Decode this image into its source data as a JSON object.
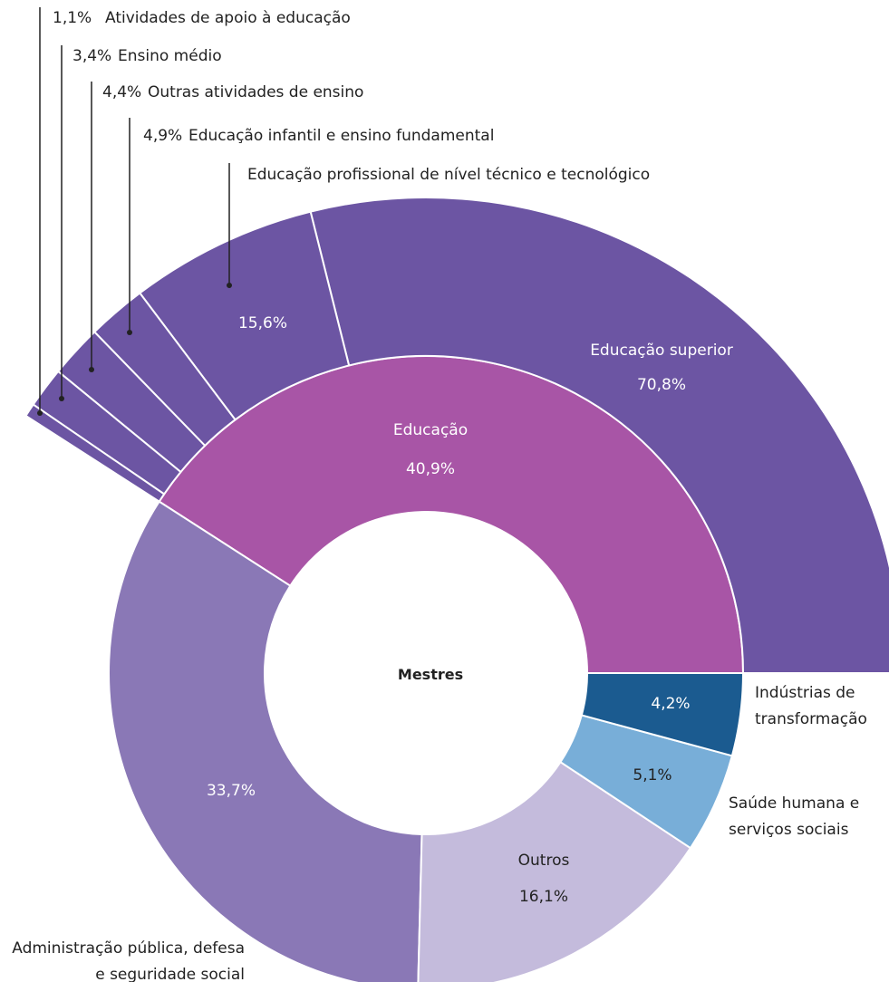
{
  "chart_data": {
    "type": "sunburst",
    "center_label": "Mestres",
    "categories": [
      "Educação",
      "Administração pública, defesa e seguridade social",
      "Outros",
      "Saúde humana e serviços sociais",
      "Indústrias de transformação"
    ],
    "values": [
      40.9,
      33.7,
      16.1,
      5.1,
      4.2
    ],
    "value_labels": [
      "40,9%",
      "33,7%",
      "16,1%",
      "5,1%",
      "4,2%"
    ],
    "colors": [
      "#a855a6",
      "#8a78b6",
      "#c4bbdc",
      "#78aed8",
      "#1b5b90"
    ],
    "children": {
      "parent": "Educação",
      "color": "#6c55a3",
      "categories": [
        "Educação superior",
        "Educação profissional de nível técnico e tecnológico",
        "Educação infantil e ensino fundamental",
        "Outras atividades de ensino",
        "Ensino médio",
        "Atividades de apoio à educação"
      ],
      "values": [
        70.8,
        15.6,
        4.9,
        4.4,
        3.4,
        1.1
      ],
      "value_labels": [
        "70,8%",
        "15,6%",
        "4,9%",
        "4,4%",
        "3,4%",
        "1,1%"
      ]
    }
  }
}
